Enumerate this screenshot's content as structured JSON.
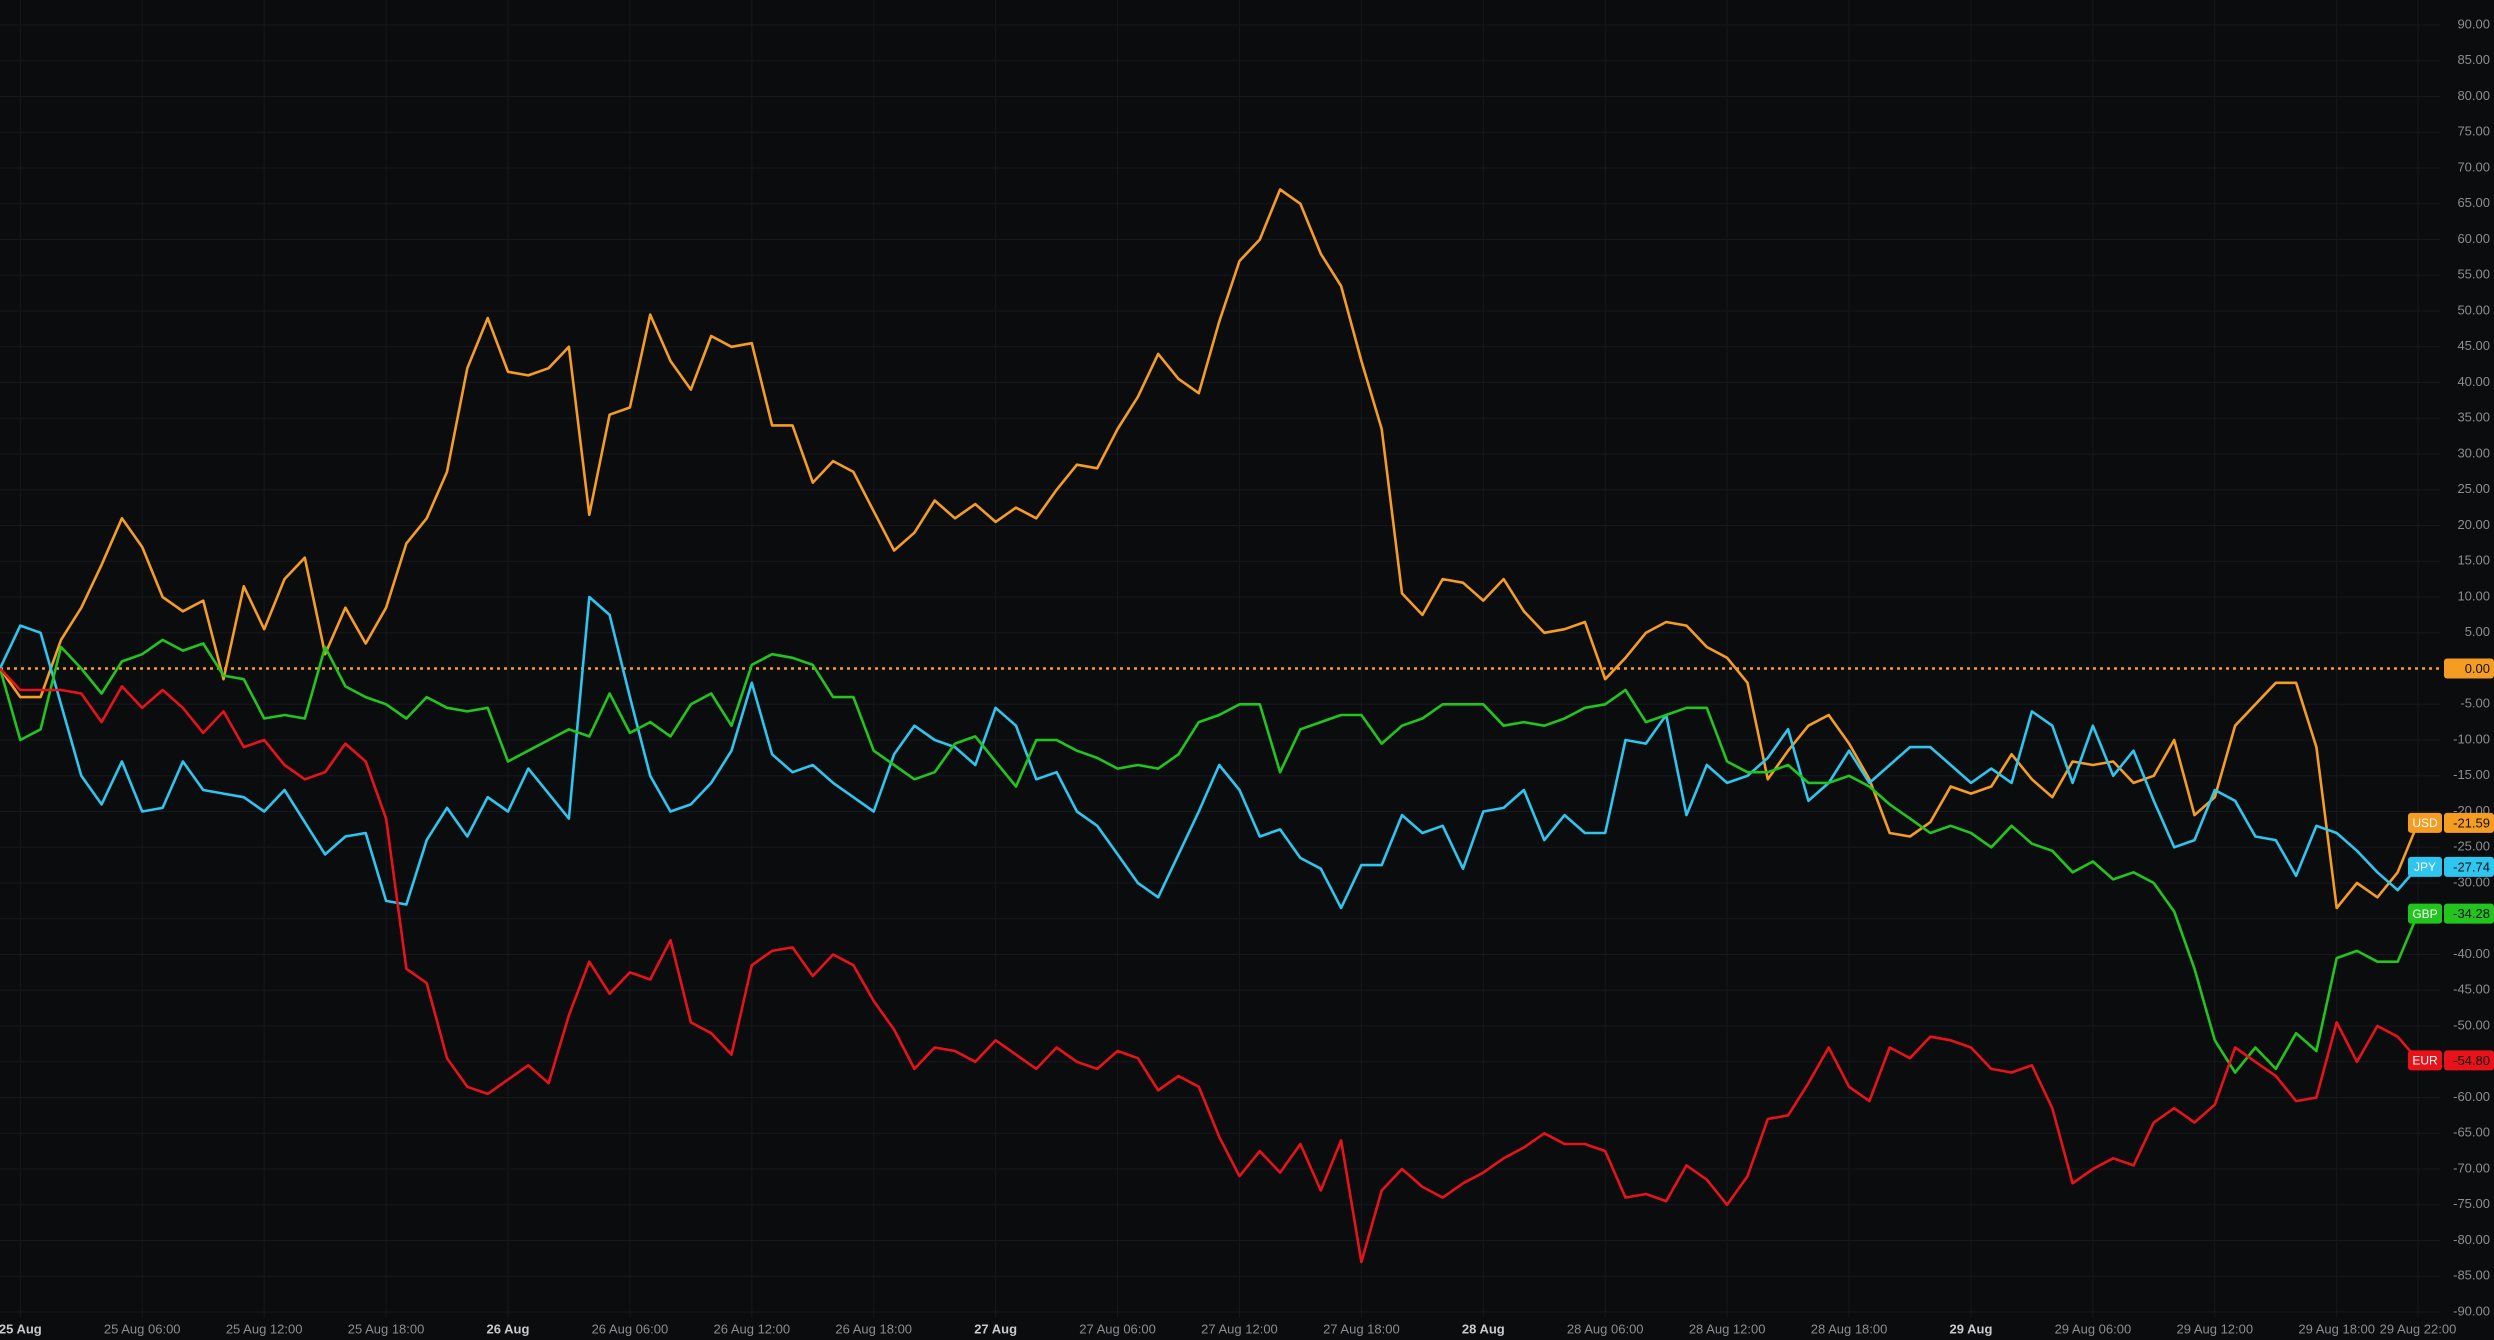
{
  "chart_data": {
    "type": "line",
    "categories": [
      null,
      "25 Aug",
      null,
      null,
      null,
      null,
      null,
      "25 Aug 06:00",
      null,
      null,
      null,
      null,
      null,
      "25 Aug 12:00",
      null,
      null,
      null,
      null,
      null,
      "25 Aug 18:00",
      null,
      null,
      null,
      null,
      null,
      "26 Aug",
      null,
      null,
      null,
      null,
      null,
      "26 Aug 06:00",
      null,
      null,
      null,
      null,
      null,
      "26 Aug 12:00",
      null,
      null,
      null,
      null,
      null,
      "26 Aug 18:00",
      null,
      null,
      null,
      null,
      null,
      "27 Aug",
      null,
      null,
      null,
      null,
      null,
      "27 Aug 06:00",
      null,
      null,
      null,
      null,
      null,
      "27 Aug 12:00",
      null,
      null,
      null,
      null,
      null,
      "27 Aug 18:00",
      null,
      null,
      null,
      null,
      null,
      "28 Aug",
      null,
      null,
      null,
      null,
      null,
      "28 Aug 06:00",
      null,
      null,
      null,
      null,
      null,
      "28 Aug 12:00",
      null,
      null,
      null,
      null,
      null,
      "28 Aug 18:00",
      null,
      null,
      null,
      null,
      null,
      "29 Aug",
      null,
      null,
      null,
      null,
      null,
      "29 Aug 06:00",
      null,
      null,
      null,
      null,
      null,
      "29 Aug 12:00",
      null,
      null,
      null,
      null,
      null,
      "29 Aug 18:00",
      null,
      null,
      null,
      "29 Aug 22:00"
    ],
    "series": [
      {
        "name": "USD",
        "color": "#f59d23",
        "value_label": "-21.59",
        "values": [
          0,
          -4,
          -4,
          4,
          8.5,
          14.5,
          21,
          17,
          10,
          8,
          9.5,
          -1.5,
          11.5,
          5.5,
          12.5,
          15.5,
          2,
          8.5,
          3.5,
          8.5,
          17.5,
          21,
          27.5,
          42,
          49,
          41.5,
          41,
          42,
          45,
          21.5,
          35.5,
          36.5,
          49.5,
          43,
          39,
          46.5,
          45,
          45.5,
          34,
          34,
          26,
          29,
          27.5,
          22,
          16.5,
          19,
          23.5,
          21,
          23,
          20.5,
          22.5,
          21,
          25,
          28.5,
          28,
          33.5,
          38,
          44,
          40.5,
          38.5,
          48.5,
          57,
          60,
          67,
          65,
          58,
          53.5,
          43,
          33.5,
          10.5,
          7.5,
          12.5,
          12,
          9.5,
          12.5,
          8,
          5,
          5.5,
          6.5,
          -1.5,
          1.5,
          5,
          6.5,
          6,
          3,
          1.5,
          -2,
          -15.5,
          -11.5,
          -8,
          -6.5,
          -10.5,
          -15.5,
          -23,
          -23.5,
          -21.5,
          -16.5,
          -17.5,
          -16.5,
          -12,
          -15.5,
          -18,
          -13,
          -13.5,
          -13,
          -16,
          -15,
          -10,
          -20.5,
          -18,
          -8,
          -5,
          -2,
          -2,
          -11,
          -33.5,
          -30,
          -32,
          -28.5,
          -21.59
        ]
      },
      {
        "name": "JPY",
        "color": "#2ec5ef",
        "value_label": "-27.74",
        "values": [
          0,
          6,
          5,
          -5,
          -15,
          -19,
          -13,
          -20,
          -19.5,
          -13,
          -17,
          -17.5,
          -18,
          -20,
          -17,
          -21.5,
          -26,
          -23.5,
          -23,
          -32.5,
          -33,
          -24,
          -19.5,
          -23.5,
          -18,
          -20,
          -14,
          -17.5,
          -21,
          10,
          7.5,
          -4,
          -15,
          -20,
          -19,
          -16,
          -11.5,
          -2,
          -12,
          -14.5,
          -13.5,
          -16,
          -18,
          -20,
          -12,
          -8,
          -10,
          -11,
          -13.5,
          -5.5,
          -8,
          -15.5,
          -14.5,
          -20,
          -22,
          -26,
          -30,
          -32,
          -26,
          -20,
          -13.5,
          -17,
          -23.5,
          -22.5,
          -26.5,
          -28,
          -33.5,
          -27.5,
          -27.5,
          -20.5,
          -23,
          -22,
          -28,
          -20,
          -19.5,
          -17,
          -24,
          -20.5,
          -23,
          -23,
          -10,
          -10.5,
          -6.5,
          -20.5,
          -13.5,
          -16,
          -15,
          -12.5,
          -8.5,
          -18.5,
          -16,
          -11.5,
          -16,
          -13.5,
          -11,
          -11,
          -13.5,
          -16,
          -14,
          -16,
          -6,
          -8,
          -16,
          -8,
          -15,
          -11.5,
          -18.5,
          -25,
          -24,
          -17,
          -18.5,
          -23.5,
          -24,
          -29,
          -22,
          -23,
          -25.5,
          -28.5,
          -31,
          -27.74
        ]
      },
      {
        "name": "GBP",
        "color": "#22c41e",
        "value_label": "-34.28",
        "values": [
          0,
          -10,
          -8.5,
          3,
          0,
          -3.5,
          1,
          2,
          4,
          2.5,
          3.5,
          -1,
          -1.5,
          -7,
          -6.5,
          -7,
          3,
          -2.5,
          -4,
          -5,
          -7,
          -4,
          -5.5,
          -6,
          -5.5,
          -13,
          -11.5,
          -10,
          -8.5,
          -9.5,
          -3.5,
          -9,
          -7.5,
          -9.5,
          -5,
          -3.5,
          -8,
          0.5,
          2,
          1.5,
          0.5,
          -4,
          -4,
          -11.5,
          -13.5,
          -15.5,
          -14.5,
          -10.5,
          -9.5,
          -13,
          -16.5,
          -10,
          -10,
          -11.5,
          -12.5,
          -14,
          -13.5,
          -14,
          -12,
          -7.5,
          -6.5,
          -5,
          -5,
          -14.5,
          -8.5,
          -7.5,
          -6.5,
          -6.5,
          -10.5,
          -8,
          -7,
          -5,
          -5,
          -5,
          -8,
          -7.5,
          -8,
          -7,
          -5.5,
          -5,
          -3,
          -7.5,
          -6.5,
          -5.5,
          -5.5,
          -13,
          -14.5,
          -14.5,
          -13.5,
          -16,
          -16,
          -15,
          -16.5,
          -19,
          -21,
          -23,
          -22,
          -23,
          -25,
          -22,
          -24.5,
          -25.5,
          -28.5,
          -27,
          -29.5,
          -28.5,
          -30,
          -34,
          -42,
          -52,
          -56.5,
          -53,
          -56,
          -51,
          -53.5,
          -40.5,
          -39.5,
          -41,
          -41,
          -34.28
        ]
      },
      {
        "name": "EUR",
        "color": "#e8121b",
        "value_label": "-54.80",
        "values": [
          0,
          -3,
          -3,
          -3,
          -3.5,
          -7.5,
          -2.5,
          -5.5,
          -3,
          -5.5,
          -9,
          -6,
          -11,
          -10,
          -13.5,
          -15.5,
          -14.5,
          -10.5,
          -13,
          -21,
          -42,
          -44,
          -54.5,
          -58.5,
          -59.5,
          -57.5,
          -55.5,
          -58,
          -48.5,
          -41,
          -45.5,
          -42.5,
          -43.5,
          -38,
          -49.5,
          -51,
          -54,
          -41.5,
          -39.5,
          -39,
          -43,
          -40,
          -41.5,
          -46.5,
          -50.5,
          -56,
          -53,
          -53.5,
          -55,
          -52,
          -54,
          -56,
          -53,
          -55,
          -56,
          -53.5,
          -54.5,
          -59,
          -57,
          -58.5,
          -65.5,
          -71,
          -67.5,
          -70.5,
          -66.5,
          -73,
          -66,
          -83,
          -73,
          -70,
          -72.5,
          -74,
          -72,
          -70.5,
          -68.5,
          -67,
          -65,
          -66.5,
          -66.5,
          -67.5,
          -74,
          -73.5,
          -74.5,
          -69.5,
          -71.5,
          -75,
          -71,
          -63,
          -62.5,
          -58,
          -53,
          -58.5,
          -60.5,
          -53,
          -54.5,
          -51.5,
          -52,
          -53,
          -56,
          -56.5,
          -55.5,
          -61.5,
          -72,
          -70,
          -68.5,
          -69.5,
          -63.5,
          -61.5,
          -63.5,
          -61,
          -53,
          -55,
          -57,
          -60.5,
          -60,
          -49.5,
          -55,
          -50,
          -51.5,
          -54.8
        ]
      }
    ],
    "reference_line": {
      "value": 0,
      "label": "0.00",
      "color": "#f59d23"
    },
    "ylim": [
      -90,
      90
    ],
    "yticks": [
      {
        "value": 90,
        "label": "90.00"
      },
      {
        "value": 85,
        "label": "85.00"
      },
      {
        "value": 80,
        "label": "80.00"
      },
      {
        "value": 75,
        "label": "75.00"
      },
      {
        "value": 70,
        "label": "70.00"
      },
      {
        "value": 65,
        "label": "65.00"
      },
      {
        "value": 60,
        "label": "60.00"
      },
      {
        "value": 55,
        "label": "55.00"
      },
      {
        "value": 50,
        "label": "50.00"
      },
      {
        "value": 45,
        "label": "45.00"
      },
      {
        "value": 40,
        "label": "40.00"
      },
      {
        "value": 35,
        "label": "35.00"
      },
      {
        "value": 30,
        "label": "30.00"
      },
      {
        "value": 25,
        "label": "25.00"
      },
      {
        "value": 20,
        "label": "20.00"
      },
      {
        "value": 15,
        "label": "15.00"
      },
      {
        "value": 10,
        "label": "10.00"
      },
      {
        "value": 5,
        "label": "5.00"
      },
      {
        "value": -5,
        "label": "-5.00"
      },
      {
        "value": -10,
        "label": "-10.00"
      },
      {
        "value": -15,
        "label": "-15.00"
      },
      {
        "value": -20,
        "label": "-20.00"
      },
      {
        "value": -25,
        "label": "-25.00"
      },
      {
        "value": -30,
        "label": "-30.00"
      },
      {
        "value": -35,
        "label": "-35.00"
      },
      {
        "value": -40,
        "label": "-40.00"
      },
      {
        "value": -45,
        "label": "-45.00"
      },
      {
        "value": -50,
        "label": "-50.00"
      },
      {
        "value": -55,
        "label": "-55.00"
      },
      {
        "value": -60,
        "label": "-60.00"
      },
      {
        "value": -65,
        "label": "-65.00"
      },
      {
        "value": -70,
        "label": "-70.00"
      },
      {
        "value": -75,
        "label": "-75.00"
      },
      {
        "value": -80,
        "label": "-80.00"
      },
      {
        "value": -85,
        "label": "-85.00"
      },
      {
        "value": -90,
        "label": "-90.00"
      }
    ],
    "grid": true
  }
}
